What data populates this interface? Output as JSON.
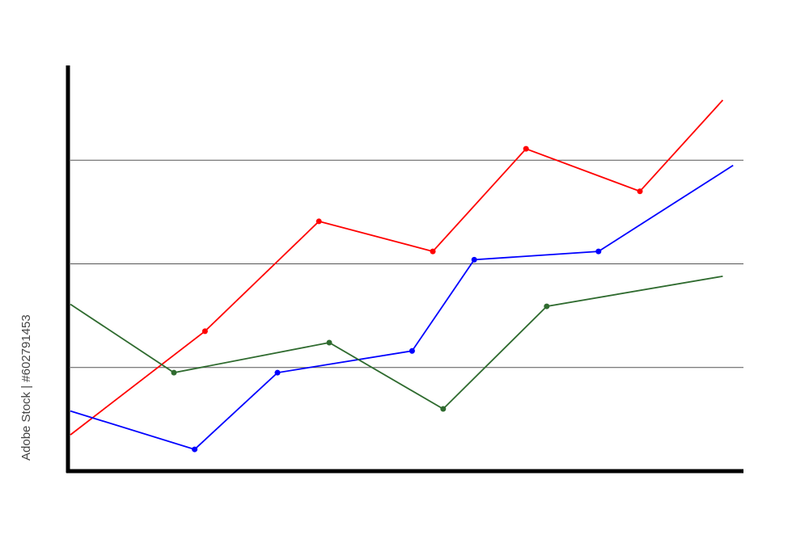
{
  "stock_id": "Adobe Stock | #602791453",
  "chart_data": {
    "type": "line",
    "title": "",
    "xlabel": "",
    "ylabel": "",
    "x": [
      0,
      1,
      2,
      3,
      4,
      5,
      6
    ],
    "xlim": [
      0,
      6.5
    ],
    "ylim": [
      0,
      4
    ],
    "grid": {
      "horizontal": true,
      "values": [
        1,
        2,
        3
      ]
    },
    "axis_color": "#000000",
    "grid_color": "#555555",
    "series": [
      {
        "color": "#ff0000",
        "points": [
          [
            0,
            0.35
          ],
          [
            1.3,
            1.35
          ],
          [
            2.4,
            2.41
          ],
          [
            3.5,
            2.12
          ],
          [
            4.4,
            3.11
          ],
          [
            5.5,
            2.7
          ],
          [
            6.3,
            3.58
          ]
        ],
        "markers": [
          false,
          true,
          true,
          true,
          true,
          true,
          false
        ]
      },
      {
        "color": "#0000ff",
        "points": [
          [
            0,
            0.58
          ],
          [
            1.2,
            0.21
          ],
          [
            2.0,
            0.95
          ],
          [
            3.3,
            1.16
          ],
          [
            3.9,
            2.04
          ],
          [
            5.1,
            2.12
          ],
          [
            6.4,
            2.95
          ]
        ],
        "markers": [
          false,
          true,
          true,
          true,
          true,
          true,
          false
        ]
      },
      {
        "color": "#2f6b2f",
        "points": [
          [
            0,
            1.61
          ],
          [
            1.0,
            0.95
          ],
          [
            2.5,
            1.24
          ],
          [
            3.6,
            0.6
          ],
          [
            4.6,
            1.59
          ],
          [
            6.3,
            1.88
          ]
        ],
        "markers": [
          false,
          true,
          true,
          true,
          true,
          false
        ]
      }
    ]
  }
}
